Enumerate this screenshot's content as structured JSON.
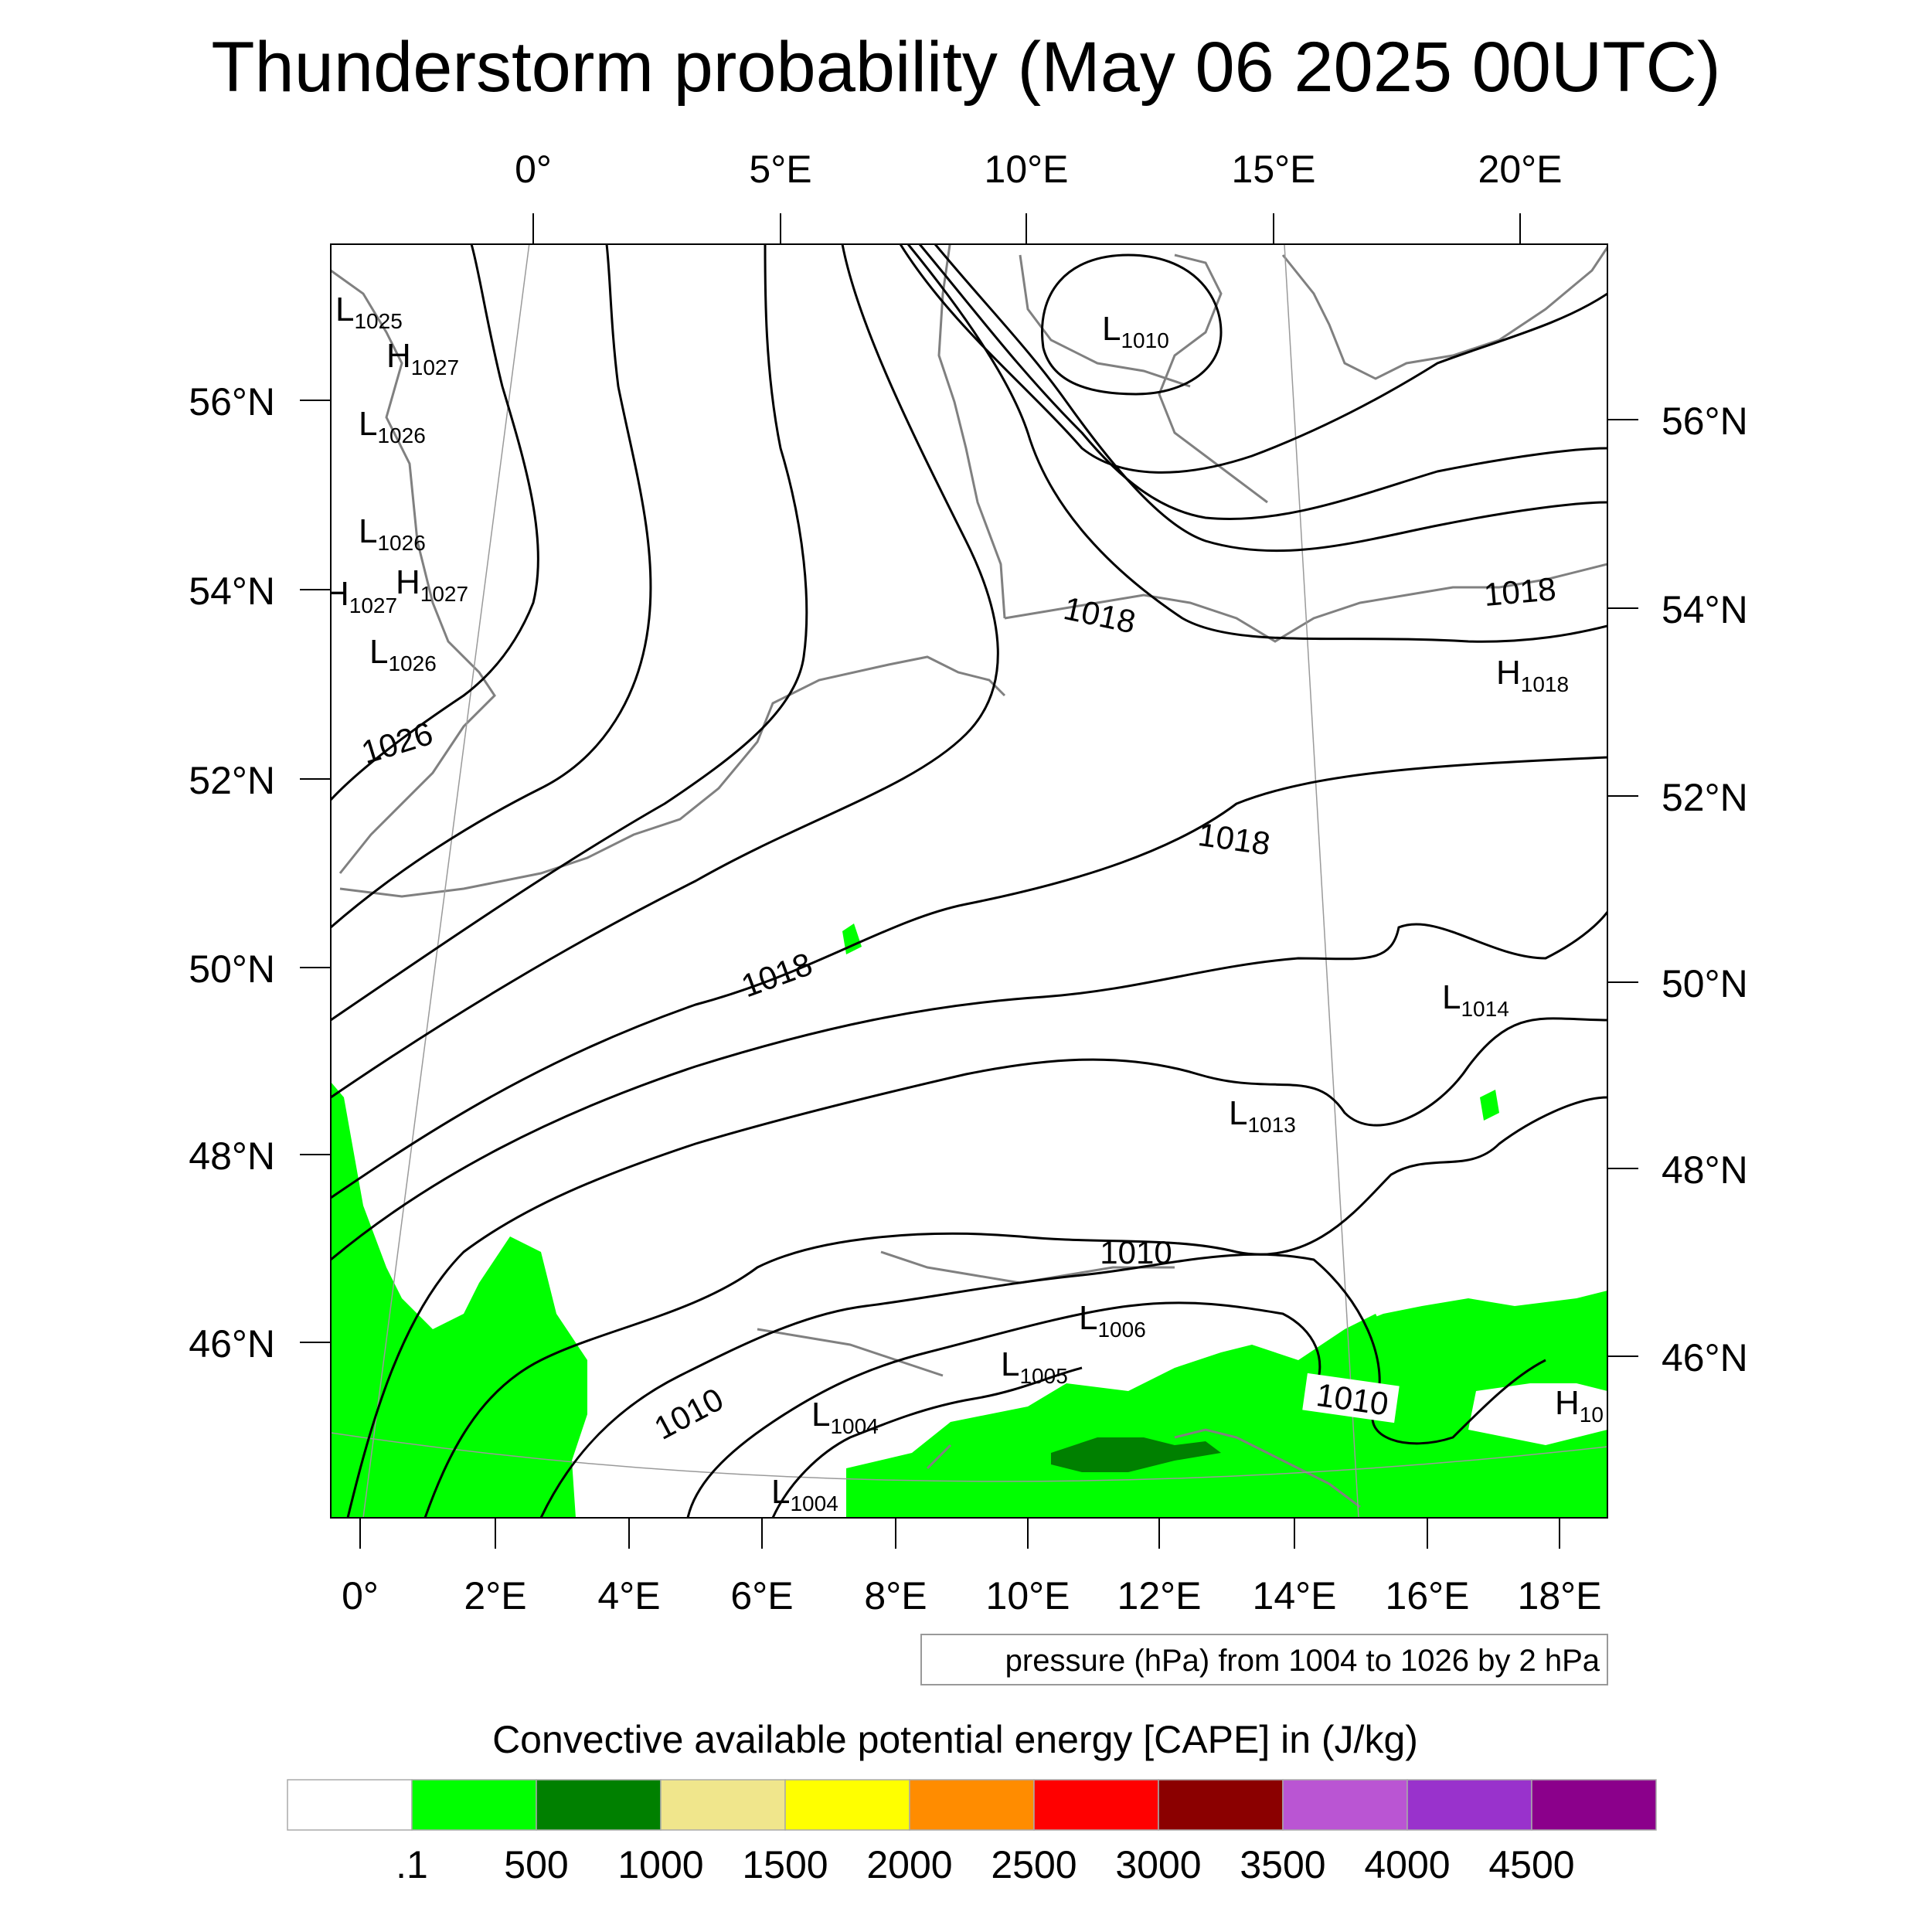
{
  "title": "Thunderstorm probability (May 06 2025 00UTC)",
  "top_lon_labels": [
    "0°",
    "5°E",
    "10°E",
    "15°E",
    "20°E"
  ],
  "bottom_lon_labels": [
    "0°",
    "2°E",
    "4°E",
    "6°E",
    "8°E",
    "10°E",
    "12°E",
    "14°E",
    "16°E",
    "18°E"
  ],
  "left_lat_labels": [
    "56°N",
    "54°N",
    "52°N",
    "50°N",
    "48°N",
    "46°N"
  ],
  "right_lat_labels": [
    "56°N",
    "54°N",
    "52°N",
    "50°N",
    "48°N",
    "46°N"
  ],
  "pressure_centers": [
    {
      "type": "L",
      "value": "1025"
    },
    {
      "type": "H",
      "value": "1027"
    },
    {
      "type": "L",
      "value": "1026"
    },
    {
      "type": "L",
      "value": "1026"
    },
    {
      "type": "H",
      "value": "1027"
    },
    {
      "type": "H",
      "value": "1027"
    },
    {
      "type": "L",
      "value": "1026"
    },
    {
      "type": "L",
      "value": "1010"
    },
    {
      "type": "H",
      "value": "1018"
    },
    {
      "type": "L",
      "value": "1014"
    },
    {
      "type": "L",
      "value": "1013"
    },
    {
      "type": "L",
      "value": "1006"
    },
    {
      "type": "L",
      "value": "1005"
    },
    {
      "type": "L",
      "value": "1004"
    },
    {
      "type": "L",
      "value": "1004"
    },
    {
      "type": "H",
      "value": "10"
    }
  ],
  "isobar_labels": [
    "1026",
    "1018",
    "1018",
    "1018",
    "1018",
    "1010",
    "1010",
    "1010"
  ],
  "contour_note": "pressure (hPa) from 1004 to 1026 by 2 hPa",
  "colorbar": {
    "title": "Convective available potential energy [CAPE] in (J/kg)",
    "colors": [
      "#ffffff",
      "#00ff00",
      "#008000",
      "#f0e68c",
      "#ffff00",
      "#ff8c00",
      "#ff0000",
      "#8b0000",
      "#ba55d3",
      "#9932cc",
      "#8b008b"
    ],
    "tick_labels": [
      ".1",
      "500",
      "1000",
      "1500",
      "2000",
      "2500",
      "3000",
      "3500",
      "4000",
      "4500"
    ]
  }
}
